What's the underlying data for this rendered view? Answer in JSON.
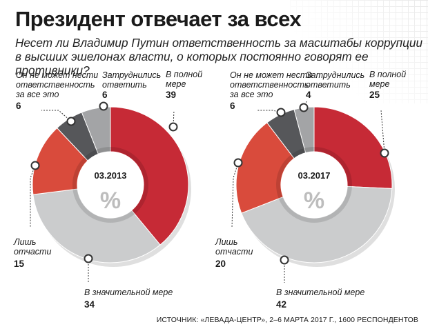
{
  "title": "Президент отвечает за всех",
  "subtitle": "Несет ли Владимир Путин ответственность за масштабы коррупции в высших эшелонах власти, о которых постоянно говорят ее противники?",
  "source": "ИСТОЧНИК: «ЛЕВАДА-ЦЕНТР», 2–6 МАРТА 2017 Г., 1600 РЕСПОНДЕНТОВ",
  "center_unit": "%",
  "chart_data": [
    {
      "type": "pie",
      "title": "03.2013",
      "categories": [
        {
          "label": [
            "В полной",
            "мере"
          ],
          "value": 39,
          "color": "#c62a36"
        },
        {
          "label": [
            "В значительной мере"
          ],
          "value": 34,
          "color": "#cbcccd"
        },
        {
          "label": [
            "Лишь",
            "отчасти"
          ],
          "value": 15,
          "color": "#d94b3c"
        },
        {
          "label": [
            "Он не может нести",
            "ответственность",
            "за все это"
          ],
          "value": 6,
          "color": "#56575a"
        },
        {
          "label": [
            "Затруднились",
            "ответить"
          ],
          "value": 6,
          "color": "#a3a4a6"
        }
      ]
    },
    {
      "type": "pie",
      "title": "03.2017",
      "categories": [
        {
          "label": [
            "В полной",
            "мере"
          ],
          "value": 25,
          "color": "#c62a36"
        },
        {
          "label": [
            "В значительной мере"
          ],
          "value": 42,
          "color": "#cbcccd"
        },
        {
          "label": [
            "Лишь",
            "отчасти"
          ],
          "value": 20,
          "color": "#d94b3c"
        },
        {
          "label": [
            "Он не может нести",
            "ответственность",
            "за все это"
          ],
          "value": 6,
          "color": "#56575a"
        },
        {
          "label": [
            "Затруднились",
            "ответить"
          ],
          "value": 4,
          "color": "#a3a4a6"
        }
      ]
    }
  ]
}
